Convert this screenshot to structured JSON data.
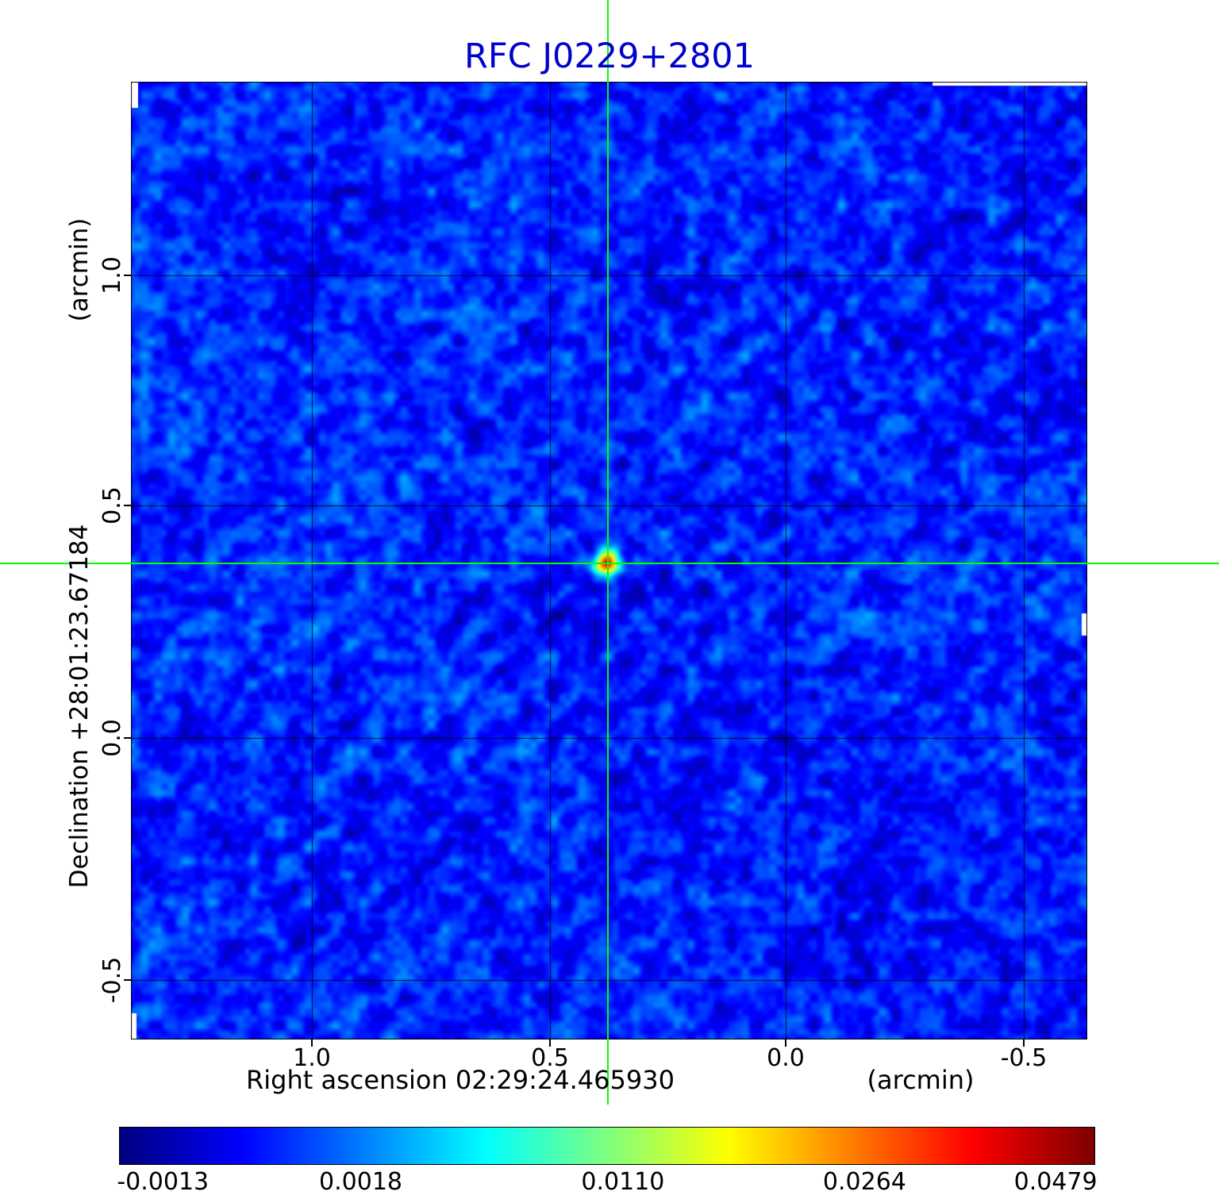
{
  "title": "RFC J0229+2801",
  "colors": {
    "title": "#0000cd",
    "crosshair": "#00ff00",
    "grid": "#000000",
    "figure_background": "#ffffff"
  },
  "y_axis": {
    "unit_label": "(arcmin)",
    "label": "Declination  +28:01:23.67184",
    "ticks": [
      "1.0",
      "0.5",
      "0.0",
      "-0.5"
    ]
  },
  "x_axis": {
    "label": "Right ascension  02:29:24.465930",
    "unit_label": "(arcmin)",
    "ticks": [
      "1.0",
      "0.5",
      "0.0",
      "-0.5"
    ]
  },
  "colorbar": {
    "colormap": "jet",
    "tick_labels": [
      "-0.0013",
      "0.0018",
      "0.0110",
      "0.0264",
      "0.0479"
    ],
    "tick_positions": [
      0.045,
      0.248,
      0.517,
      0.765,
      0.961
    ]
  },
  "chart_data": {
    "type": "heatmap",
    "title": "RFC J0229+2801",
    "xlabel": "Right ascension 02:29:24.465930 (arcmin)",
    "ylabel": "Declination +28:01:23.67184 (arcmin)",
    "x_ticks": [
      1.0,
      0.5,
      0.0,
      -0.5
    ],
    "y_ticks": [
      1.0,
      0.5,
      0.0,
      -0.5
    ],
    "x_range": [
      1.39,
      -0.64
    ],
    "y_range": [
      -0.63,
      1.42
    ],
    "grid": true,
    "colormap": "jet",
    "intensity_scale_ticks": [
      -0.0013,
      0.0018,
      0.011,
      0.0264,
      0.0479
    ],
    "intensity_min": -0.0013,
    "intensity_max": 0.0479,
    "peak_source": {
      "x_arcmin": 0.38,
      "y_arcmin": 0.38,
      "peak_intensity": 0.0479,
      "marker": "green crosshair through peak"
    },
    "description": "Radio interferometric continuum map: blue noise background with one bright compact source at the crosshair; faint diagonal sidelobe rays and fringe stripes radiate from the source."
  }
}
